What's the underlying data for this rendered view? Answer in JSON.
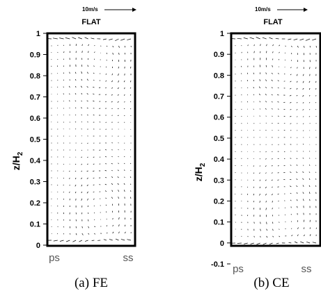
{
  "chart_data": [
    {
      "type": "vector-field",
      "panel_label": "(a)",
      "caption": "(a)  FE",
      "title": "FLAT",
      "scale_label": "10m/s",
      "ylabel": "z/H",
      "ylabel_sub": "2",
      "ylim": [
        0,
        1
      ],
      "yticks": [
        "0",
        "0.1",
        "0.2",
        "0.3",
        "0.4",
        "0.5",
        "0.6",
        "0.7",
        "0.8",
        "0.9",
        "1"
      ],
      "x_labels": [
        "ps",
        "ss"
      ]
    },
    {
      "type": "vector-field",
      "panel_label": "(b)",
      "caption": "(b)  CE",
      "title": "FLAT",
      "scale_label": "10m/s",
      "ylabel": "z/H",
      "ylabel_sub": "2",
      "ylim": [
        -0.1,
        1
      ],
      "yticks": [
        "-0.1",
        "0",
        "0.1",
        "0.2",
        "0.3",
        "0.4",
        "0.5",
        "0.6",
        "0.7",
        "0.8",
        "0.9",
        "1"
      ],
      "x_labels": [
        "ps",
        "ss"
      ]
    }
  ]
}
